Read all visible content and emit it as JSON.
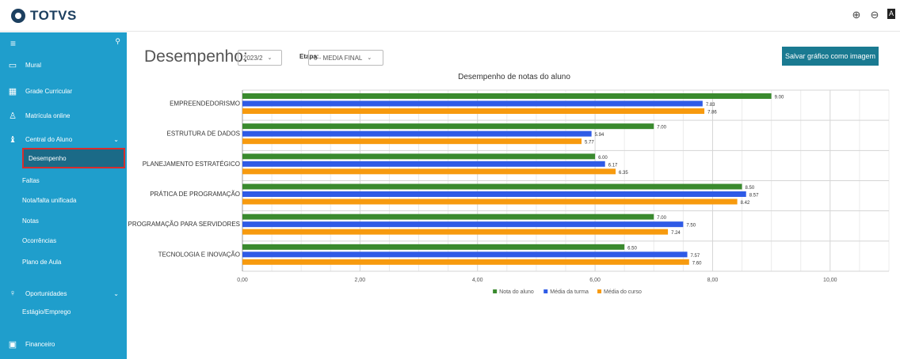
{
  "app": {
    "brand": "TOTVS"
  },
  "topbar": {
    "icons": [
      "zoom-in-icon",
      "zoom-out-icon",
      "font-icon"
    ]
  },
  "sidebar": {
    "items": [
      {
        "label": "Mural",
        "icon": "monitor-icon"
      },
      {
        "label": "Grade Curricular",
        "icon": "grid-icon"
      },
      {
        "label": "Matrícula online",
        "icon": "user-add-icon"
      },
      {
        "label": "Central do Aluno",
        "icon": "graduation-cap-icon"
      }
    ],
    "central_sub": [
      "Desempenho",
      "Faltas",
      "Nota/falta unificada",
      "Notas",
      "Ocorrências",
      "Plano de Aula"
    ],
    "oportunidades": {
      "label": "Oportunidades",
      "icon": "bulb-icon",
      "sub": [
        "Estágio/Emprego"
      ]
    },
    "financeiro": {
      "label": "Financeiro",
      "icon": "document-icon"
    }
  },
  "page": {
    "title": "Desempenho:",
    "period_value": "2023/2",
    "etapa_label": "Etapa:",
    "etapa_value": "0 - MEDIA FINAL",
    "save_button": "Salvar gráfico como imagem"
  },
  "chart_data": {
    "type": "bar",
    "orientation": "horizontal",
    "title": "Desempenho de notas do aluno",
    "categories": [
      "EMPREENDEDORISMO",
      "ESTRUTURA DE DADOS",
      "PLANEJAMENTO ESTRATÉGICO",
      "PRÁTICA DE PROGRAMAÇÃO",
      "PROGRAMAÇÃO PARA SERVIDORES",
      "TECNOLOGIA E INOVAÇÃO"
    ],
    "series": [
      {
        "name": "Nota do aluno",
        "color": "#3a8a2e",
        "values": [
          9.0,
          7.0,
          6.0,
          8.5,
          7.0,
          6.5
        ]
      },
      {
        "name": "Média da turma",
        "color": "#2f5be6",
        "values": [
          7.83,
          5.94,
          6.17,
          8.57,
          7.5,
          7.57
        ]
      },
      {
        "name": "Média do curso",
        "color": "#f79a0e",
        "values": [
          7.86,
          5.77,
          6.35,
          8.42,
          7.24,
          7.6
        ]
      }
    ],
    "xlim": [
      0,
      11
    ],
    "ticks": [
      "0,00",
      "2,00",
      "4,00",
      "6,00",
      "8,00",
      "10,00"
    ],
    "tick_values": [
      0,
      2,
      4,
      6,
      8,
      10
    ],
    "grid": true,
    "legend": "bottom"
  }
}
